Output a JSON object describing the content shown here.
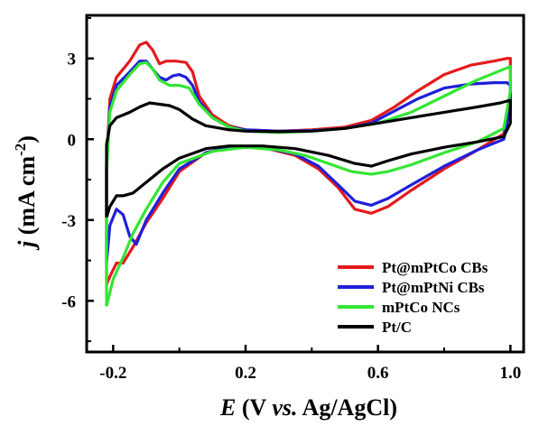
{
  "chart_data": {
    "type": "line",
    "title": "",
    "xlabel": {
      "var": "E",
      "rest": " (V ",
      "ital": "vs.",
      "tail": " Ag/AgCl)"
    },
    "ylabel": {
      "var": "j",
      "rest": " (mA cm",
      "sup": "-2",
      "tail": ")"
    },
    "xlim": [
      -0.28,
      1.04
    ],
    "ylim": [
      -7.9,
      4.6
    ],
    "xticks": [
      -0.2,
      0.2,
      0.6,
      1.0
    ],
    "xtick_labels": [
      "-0.2",
      "0.2",
      "0.6",
      "1.0"
    ],
    "yticks": [
      3,
      0,
      -3,
      -6
    ],
    "ytick_labels": [
      "3",
      "0",
      "-3",
      "-6"
    ],
    "grid": false,
    "legend_position": "bottom-right",
    "series": [
      {
        "name": "Pt@mPtCo CBs",
        "color": "#e41a1c",
        "points": [
          [
            -0.22,
            -5.4
          ],
          [
            -0.22,
            -1.0
          ],
          [
            -0.21,
            1.5
          ],
          [
            -0.19,
            2.3
          ],
          [
            -0.15,
            2.9
          ],
          [
            -0.12,
            3.5
          ],
          [
            -0.1,
            3.6
          ],
          [
            -0.08,
            3.3
          ],
          [
            -0.06,
            2.8
          ],
          [
            -0.04,
            2.9
          ],
          [
            -0.01,
            2.9
          ],
          [
            0.02,
            2.85
          ],
          [
            0.04,
            2.5
          ],
          [
            0.06,
            1.6
          ],
          [
            0.1,
            0.9
          ],
          [
            0.15,
            0.5
          ],
          [
            0.2,
            0.35
          ],
          [
            0.3,
            0.3
          ],
          [
            0.4,
            0.35
          ],
          [
            0.5,
            0.45
          ],
          [
            0.58,
            0.7
          ],
          [
            0.65,
            1.2
          ],
          [
            0.72,
            1.8
          ],
          [
            0.8,
            2.4
          ],
          [
            0.88,
            2.75
          ],
          [
            0.95,
            2.9
          ],
          [
            0.99,
            3.0
          ],
          [
            1.0,
            3.0
          ],
          [
            1.0,
            1.6
          ],
          [
            0.98,
            0.2
          ],
          [
            0.9,
            -0.4
          ],
          [
            0.8,
            -1.1
          ],
          [
            0.7,
            -1.9
          ],
          [
            0.63,
            -2.5
          ],
          [
            0.58,
            -2.75
          ],
          [
            0.53,
            -2.6
          ],
          [
            0.48,
            -1.8
          ],
          [
            0.42,
            -1.1
          ],
          [
            0.35,
            -0.6
          ],
          [
            0.25,
            -0.3
          ],
          [
            0.15,
            -0.3
          ],
          [
            0.08,
            -0.5
          ],
          [
            0.0,
            -1.2
          ],
          [
            -0.05,
            -2.2
          ],
          [
            -0.1,
            -3.1
          ],
          [
            -0.14,
            -4.0
          ],
          [
            -0.17,
            -4.6
          ],
          [
            -0.19,
            -4.6
          ],
          [
            -0.21,
            -5.1
          ],
          [
            -0.22,
            -5.4
          ]
        ]
      },
      {
        "name": "Pt@mPtNi CBs",
        "color": "#1f1fd9",
        "points": [
          [
            -0.22,
            -4.6
          ],
          [
            -0.22,
            -1.0
          ],
          [
            -0.21,
            1.2
          ],
          [
            -0.19,
            2.0
          ],
          [
            -0.15,
            2.5
          ],
          [
            -0.12,
            2.9
          ],
          [
            -0.1,
            2.9
          ],
          [
            -0.08,
            2.6
          ],
          [
            -0.06,
            2.3
          ],
          [
            -0.04,
            2.2
          ],
          [
            -0.02,
            2.35
          ],
          [
            0.0,
            2.4
          ],
          [
            0.02,
            2.3
          ],
          [
            0.04,
            2.0
          ],
          [
            0.06,
            1.4
          ],
          [
            0.1,
            0.8
          ],
          [
            0.15,
            0.45
          ],
          [
            0.2,
            0.35
          ],
          [
            0.3,
            0.3
          ],
          [
            0.4,
            0.32
          ],
          [
            0.5,
            0.4
          ],
          [
            0.58,
            0.6
          ],
          [
            0.65,
            1.05
          ],
          [
            0.72,
            1.5
          ],
          [
            0.8,
            1.9
          ],
          [
            0.88,
            2.05
          ],
          [
            0.95,
            2.1
          ],
          [
            0.99,
            2.1
          ],
          [
            1.0,
            2.0
          ],
          [
            1.0,
            1.2
          ],
          [
            0.98,
            0.0
          ],
          [
            0.9,
            -0.4
          ],
          [
            0.8,
            -1.0
          ],
          [
            0.7,
            -1.7
          ],
          [
            0.63,
            -2.2
          ],
          [
            0.58,
            -2.45
          ],
          [
            0.53,
            -2.3
          ],
          [
            0.48,
            -1.7
          ],
          [
            0.42,
            -1.0
          ],
          [
            0.35,
            -0.55
          ],
          [
            0.25,
            -0.3
          ],
          [
            0.15,
            -0.3
          ],
          [
            0.08,
            -0.5
          ],
          [
            0.0,
            -1.1
          ],
          [
            -0.05,
            -2.0
          ],
          [
            -0.1,
            -3.0
          ],
          [
            -0.13,
            -3.9
          ],
          [
            -0.15,
            -3.6
          ],
          [
            -0.17,
            -2.8
          ],
          [
            -0.19,
            -2.6
          ],
          [
            -0.21,
            -3.2
          ],
          [
            -0.22,
            -4.6
          ]
        ]
      },
      {
        "name": "mPtCo NCs",
        "color": "#33e633",
        "points": [
          [
            -0.22,
            -6.2
          ],
          [
            -0.22,
            -1.2
          ],
          [
            -0.21,
            1.0
          ],
          [
            -0.19,
            1.8
          ],
          [
            -0.15,
            2.4
          ],
          [
            -0.12,
            2.8
          ],
          [
            -0.1,
            2.85
          ],
          [
            -0.08,
            2.6
          ],
          [
            -0.06,
            2.2
          ],
          [
            -0.03,
            2.0
          ],
          [
            0.0,
            2.0
          ],
          [
            0.03,
            1.9
          ],
          [
            0.06,
            1.3
          ],
          [
            0.1,
            0.8
          ],
          [
            0.15,
            0.45
          ],
          [
            0.2,
            0.3
          ],
          [
            0.3,
            0.25
          ],
          [
            0.4,
            0.3
          ],
          [
            0.5,
            0.4
          ],
          [
            0.6,
            0.6
          ],
          [
            0.7,
            1.0
          ],
          [
            0.8,
            1.6
          ],
          [
            0.9,
            2.2
          ],
          [
            0.97,
            2.55
          ],
          [
            1.0,
            2.7
          ],
          [
            1.0,
            1.8
          ],
          [
            0.98,
            0.4
          ],
          [
            0.9,
            -0.1
          ],
          [
            0.8,
            -0.5
          ],
          [
            0.7,
            -0.95
          ],
          [
            0.63,
            -1.2
          ],
          [
            0.58,
            -1.3
          ],
          [
            0.52,
            -1.2
          ],
          [
            0.45,
            -0.9
          ],
          [
            0.38,
            -0.6
          ],
          [
            0.3,
            -0.4
          ],
          [
            0.2,
            -0.3
          ],
          [
            0.1,
            -0.45
          ],
          [
            0.0,
            -0.9
          ],
          [
            -0.05,
            -1.6
          ],
          [
            -0.1,
            -2.6
          ],
          [
            -0.14,
            -3.5
          ],
          [
            -0.17,
            -4.4
          ],
          [
            -0.2,
            -5.2
          ],
          [
            -0.22,
            -6.2
          ]
        ]
      },
      {
        "name": "Pt/C",
        "color": "#000000",
        "points": [
          [
            -0.22,
            -2.9
          ],
          [
            -0.22,
            -0.2
          ],
          [
            -0.21,
            0.5
          ],
          [
            -0.19,
            0.8
          ],
          [
            -0.15,
            1.0
          ],
          [
            -0.12,
            1.2
          ],
          [
            -0.09,
            1.35
          ],
          [
            -0.06,
            1.3
          ],
          [
            -0.03,
            1.25
          ],
          [
            0.0,
            1.1
          ],
          [
            0.04,
            0.75
          ],
          [
            0.08,
            0.5
          ],
          [
            0.15,
            0.35
          ],
          [
            0.2,
            0.3
          ],
          [
            0.3,
            0.28
          ],
          [
            0.4,
            0.3
          ],
          [
            0.5,
            0.4
          ],
          [
            0.6,
            0.6
          ],
          [
            0.7,
            0.8
          ],
          [
            0.8,
            1.0
          ],
          [
            0.9,
            1.2
          ],
          [
            0.97,
            1.35
          ],
          [
            1.0,
            1.45
          ],
          [
            1.0,
            0.6
          ],
          [
            0.98,
            0.1
          ],
          [
            0.9,
            -0.1
          ],
          [
            0.8,
            -0.3
          ],
          [
            0.7,
            -0.55
          ],
          [
            0.63,
            -0.8
          ],
          [
            0.58,
            -1.0
          ],
          [
            0.53,
            -0.9
          ],
          [
            0.45,
            -0.6
          ],
          [
            0.35,
            -0.35
          ],
          [
            0.25,
            -0.25
          ],
          [
            0.15,
            -0.25
          ],
          [
            0.08,
            -0.35
          ],
          [
            0.0,
            -0.7
          ],
          [
            -0.05,
            -1.1
          ],
          [
            -0.1,
            -1.6
          ],
          [
            -0.14,
            -2.0
          ],
          [
            -0.17,
            -2.1
          ],
          [
            -0.19,
            -2.1
          ],
          [
            -0.21,
            -2.5
          ],
          [
            -0.22,
            -2.9
          ]
        ]
      }
    ]
  }
}
